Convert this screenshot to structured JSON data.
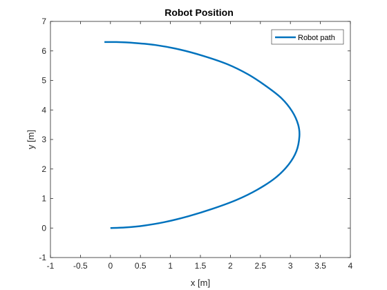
{
  "chart_data": {
    "type": "line",
    "title": "Robot Position",
    "xlabel": "x [m]",
    "ylabel": "y [m]",
    "xlim": [
      -1,
      4
    ],
    "ylim": [
      -1,
      7
    ],
    "xticks": [
      -1,
      -0.5,
      0,
      0.5,
      1,
      1.5,
      2,
      2.5,
      3,
      3.5,
      4
    ],
    "xtick_labels": [
      "-1",
      "-0.5",
      "0",
      "0.5",
      "1",
      "1.5",
      "2",
      "2.5",
      "3",
      "3.5",
      "4"
    ],
    "yticks": [
      -1,
      0,
      1,
      2,
      3,
      4,
      5,
      6,
      7
    ],
    "ytick_labels": [
      "-1",
      "0",
      "1",
      "2",
      "3",
      "4",
      "5",
      "6",
      "7"
    ],
    "grid": false,
    "legend": {
      "placement": "top-right",
      "entries": [
        "Robot path"
      ]
    },
    "series": [
      {
        "name": "Robot path",
        "color": "#0072BD",
        "x": [
          0,
          0.25,
          0.55,
          0.9,
          1.3,
          1.7,
          2.1,
          2.45,
          2.75,
          2.97,
          3.1,
          3.15,
          3.13,
          3.03,
          2.85,
          2.6,
          2.3,
          1.95,
          1.55,
          1.15,
          0.75,
          0.4,
          0.1,
          -0.1
        ],
        "y": [
          0,
          0.02,
          0.08,
          0.2,
          0.4,
          0.65,
          0.95,
          1.3,
          1.7,
          2.15,
          2.6,
          3.1,
          3.5,
          3.95,
          4.4,
          4.8,
          5.2,
          5.55,
          5.83,
          6.05,
          6.2,
          6.27,
          6.3,
          6.3
        ]
      }
    ]
  }
}
